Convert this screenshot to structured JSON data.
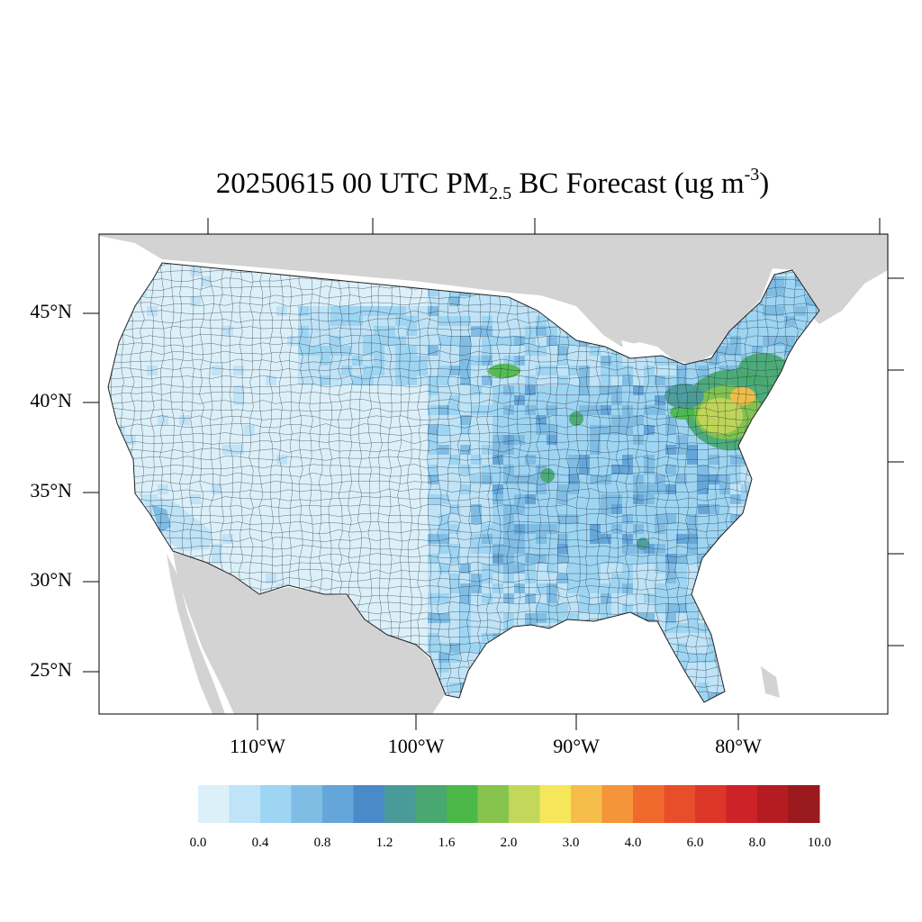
{
  "title": {
    "prefix": "20250615 00 UTC PM",
    "subscript": "2.5",
    "middle": " BC Forecast (ug m",
    "superscript": "-3",
    "suffix": ")"
  },
  "map": {
    "region": "Contiguous United States",
    "lat_labels": [
      "45°N",
      "40°N",
      "35°N",
      "30°N",
      "25°N"
    ],
    "lon_labels": [
      "110°W",
      "100°W",
      "90°W",
      "80°W"
    ],
    "colors": {
      "land_other": "#d3d3d3",
      "water": "#ffffff",
      "county_border": "#222222"
    }
  },
  "colorbar": {
    "labels": [
      "0.0",
      "0.4",
      "0.8",
      "1.2",
      "1.6",
      "2.0",
      "3.0",
      "4.0",
      "6.0",
      "8.0",
      "10.0"
    ],
    "colors": [
      "#dcf0fa",
      "#bfe3f7",
      "#9dd5f3",
      "#7fbde5",
      "#65a6da",
      "#4a8ac8",
      "#4a9a9a",
      "#48a870",
      "#4cb848",
      "#86c44e",
      "#c3d75a",
      "#f6e65a",
      "#f7bd4a",
      "#f5943a",
      "#f06a2e",
      "#e84e2a",
      "#dc3628",
      "#cc2228",
      "#b41c22",
      "#9a1a1e"
    ]
  }
}
